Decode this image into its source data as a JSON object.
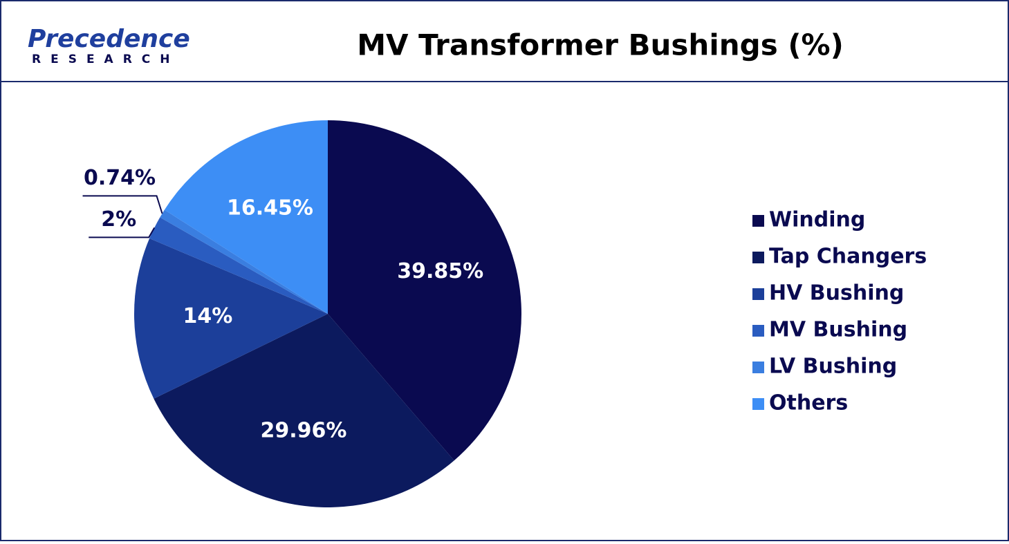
{
  "logo": {
    "name": "Precedence",
    "sub": "RESEARCH"
  },
  "chart_data": {
    "type": "pie",
    "title": "MV Transformer Bushings (%)",
    "categories": [
      "Winding",
      "Tap Changers",
      "HV Bushing",
      "MV Bushing",
      "LV Bushing",
      "Others"
    ],
    "values": [
      39.85,
      29.96,
      14,
      2,
      0.74,
      16.45
    ],
    "value_labels": [
      "39.85%",
      "29.96%",
      "14%",
      "2%",
      "0.74%",
      "16.45%"
    ],
    "colors": [
      "#0a0a50",
      "#0c1a5e",
      "#1c3f9a",
      "#2a5cc0",
      "#3a7ee0",
      "#3d8ef5"
    ],
    "legend": "right"
  }
}
